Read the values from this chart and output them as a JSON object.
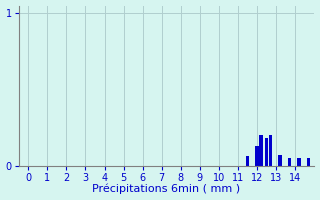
{
  "xlabel": "Précipitations 6min ( mm )",
  "xlim": [
    -0.5,
    15.0
  ],
  "ylim": [
    0,
    1.05
  ],
  "yticks": [
    0,
    1
  ],
  "xticks": [
    0,
    1,
    2,
    3,
    4,
    5,
    6,
    7,
    8,
    9,
    10,
    11,
    12,
    13,
    14
  ],
  "bar_x": [
    11.5,
    12.0,
    12.2,
    12.5,
    12.7,
    13.2,
    13.7,
    14.2,
    14.7
  ],
  "bar_heights": [
    0.06,
    0.13,
    0.2,
    0.18,
    0.2,
    0.07,
    0.05,
    0.05,
    0.05
  ],
  "bar_width": 0.18,
  "bar_color": "#0000cc",
  "background_color": "#d6f5f0",
  "grid_color": "#b0cece",
  "axis_color": "#808080",
  "text_color": "#0000cc",
  "tick_fontsize": 7,
  "xlabel_fontsize": 8
}
